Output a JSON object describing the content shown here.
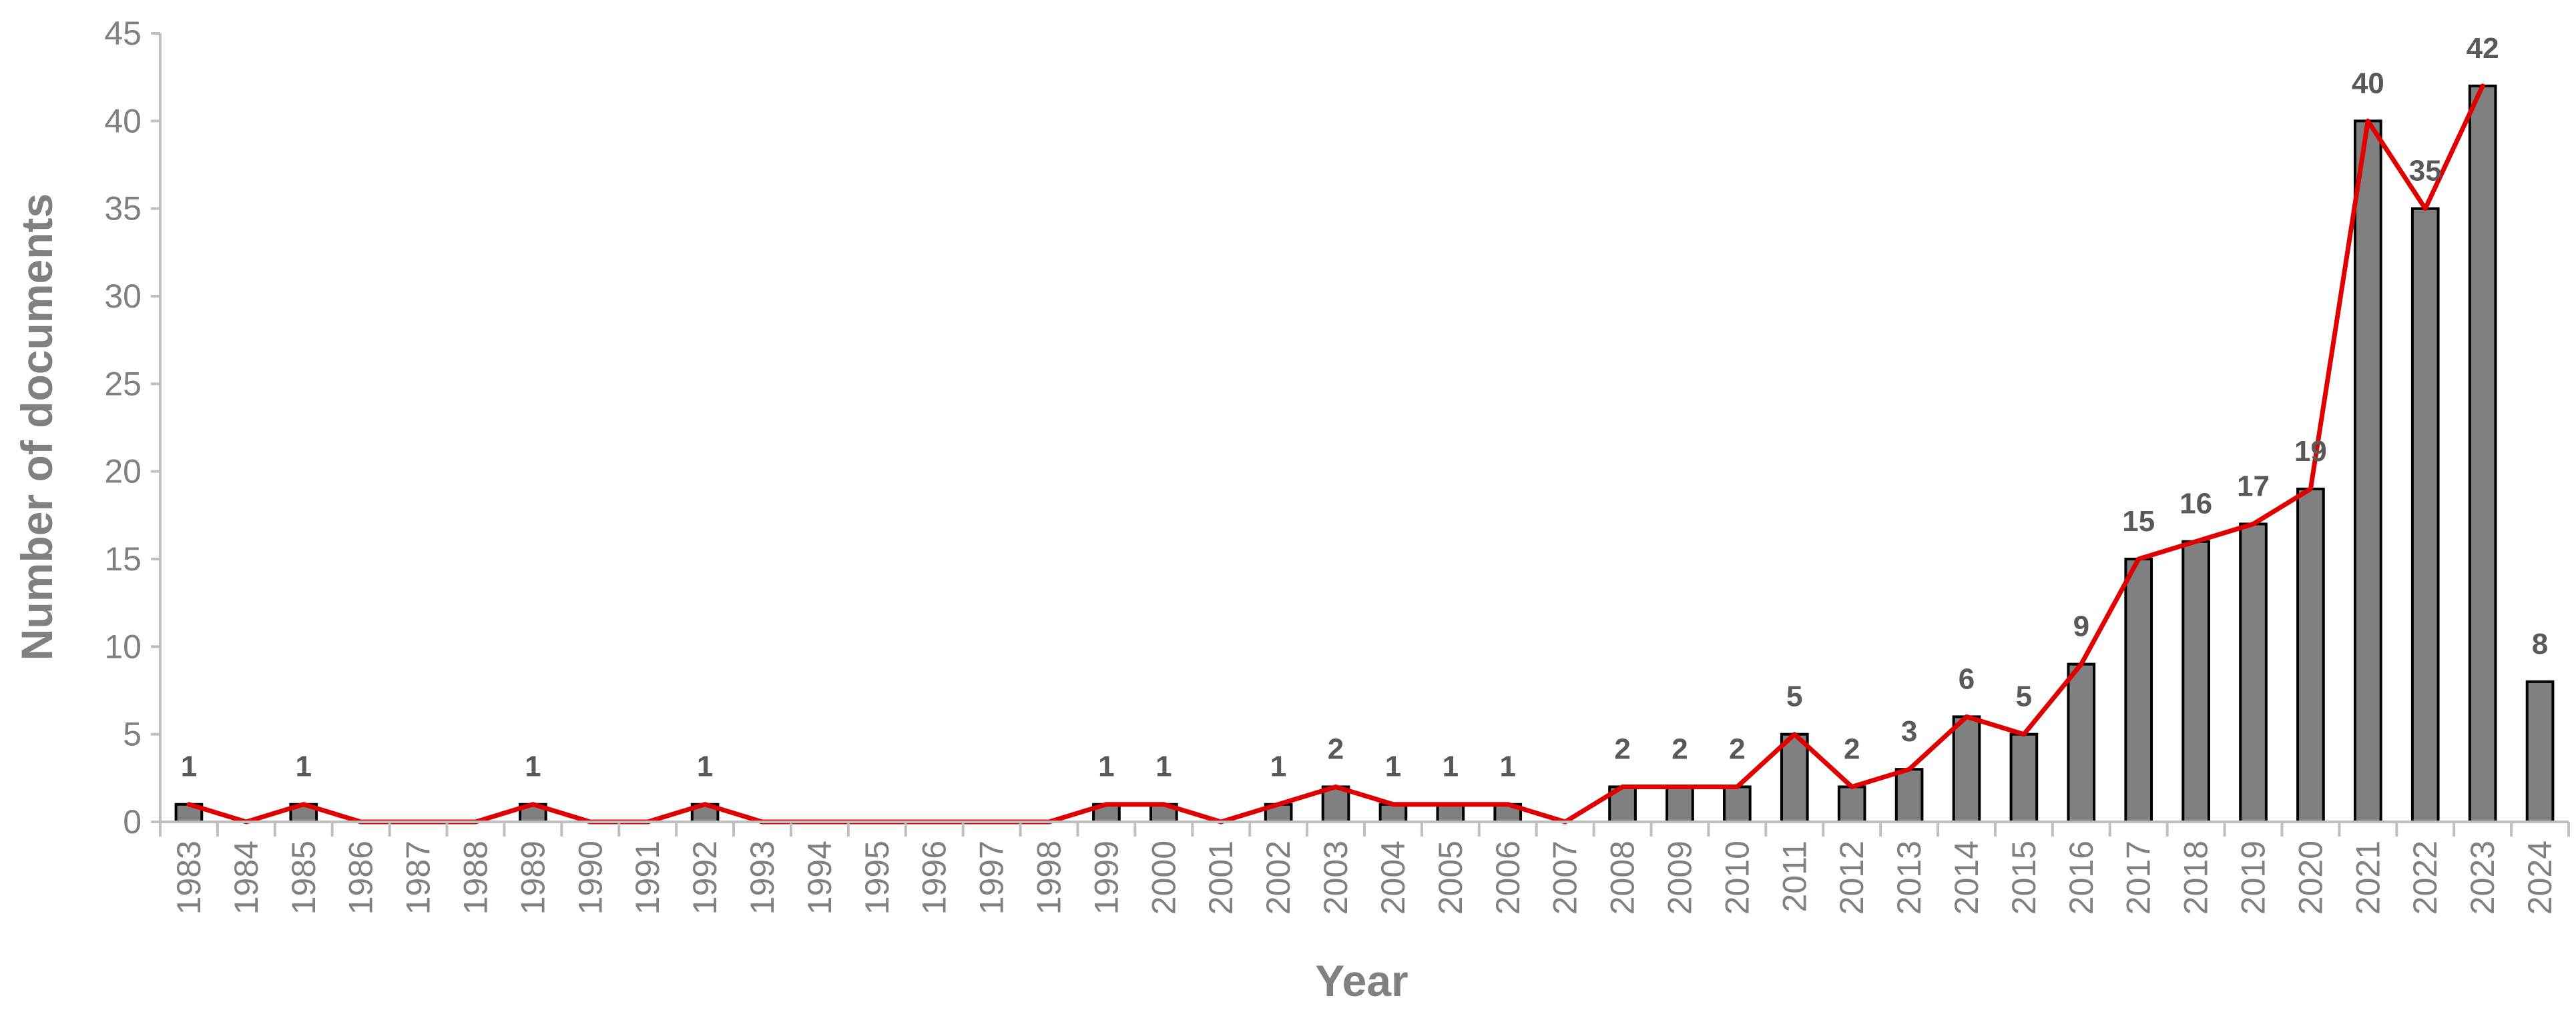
{
  "chart_data": {
    "type": "bar",
    "xlabel": "Year",
    "ylabel": "Number of documents",
    "ylim": [
      0,
      45
    ],
    "yticks": [
      "0",
      "5",
      "10",
      "15",
      "20",
      "25",
      "30",
      "35",
      "40",
      "45"
    ],
    "grid": false,
    "legend": "none",
    "categories": [
      "1983",
      "1984",
      "1985",
      "1986",
      "1987",
      "1988",
      "1989",
      "1990",
      "1991",
      "1992",
      "1993",
      "1994",
      "1995",
      "1996",
      "1997",
      "1998",
      "1999",
      "2000",
      "2001",
      "2002",
      "2003",
      "2004",
      "2005",
      "2006",
      "2007",
      "2008",
      "2009",
      "2010",
      "2011",
      "2012",
      "2013",
      "2014",
      "2015",
      "2016",
      "2017",
      "2018",
      "2019",
      "2020",
      "2021",
      "2022",
      "2023",
      "2024"
    ],
    "series": [
      {
        "type": "bar",
        "values": [
          1,
          0,
          1,
          0,
          0,
          0,
          1,
          0,
          0,
          1,
          0,
          0,
          0,
          0,
          0,
          0,
          1,
          1,
          0,
          1,
          2,
          1,
          1,
          1,
          0,
          2,
          2,
          2,
          5,
          2,
          3,
          6,
          5,
          9,
          15,
          16,
          17,
          19,
          40,
          35,
          42,
          8
        ]
      },
      {
        "type": "line",
        "values": [
          1,
          0,
          1,
          0,
          0,
          0,
          1,
          0,
          0,
          1,
          0,
          0,
          0,
          0,
          0,
          0,
          1,
          1,
          0,
          1,
          2,
          1,
          1,
          1,
          0,
          2,
          2,
          2,
          5,
          2,
          3,
          6,
          5,
          9,
          15,
          16,
          17,
          19,
          40,
          35,
          42,
          null
        ]
      }
    ],
    "data_labels": [
      "1",
      "",
      "1",
      "",
      "",
      "",
      "1",
      "",
      "",
      "1",
      "",
      "",
      "",
      "",
      "",
      "",
      "1",
      "1",
      "",
      "1",
      "2",
      "1",
      "1",
      "1",
      "",
      "2",
      "2",
      "2",
      "5",
      "2",
      "3",
      "6",
      "5",
      "9",
      "15",
      "16",
      "17",
      "19",
      "40",
      "35",
      "42",
      "8"
    ],
    "colors": {
      "bar_fill": "#808080",
      "bar_stroke": "#000000",
      "line": "#e00000",
      "axis": "#bfbfbf"
    }
  }
}
